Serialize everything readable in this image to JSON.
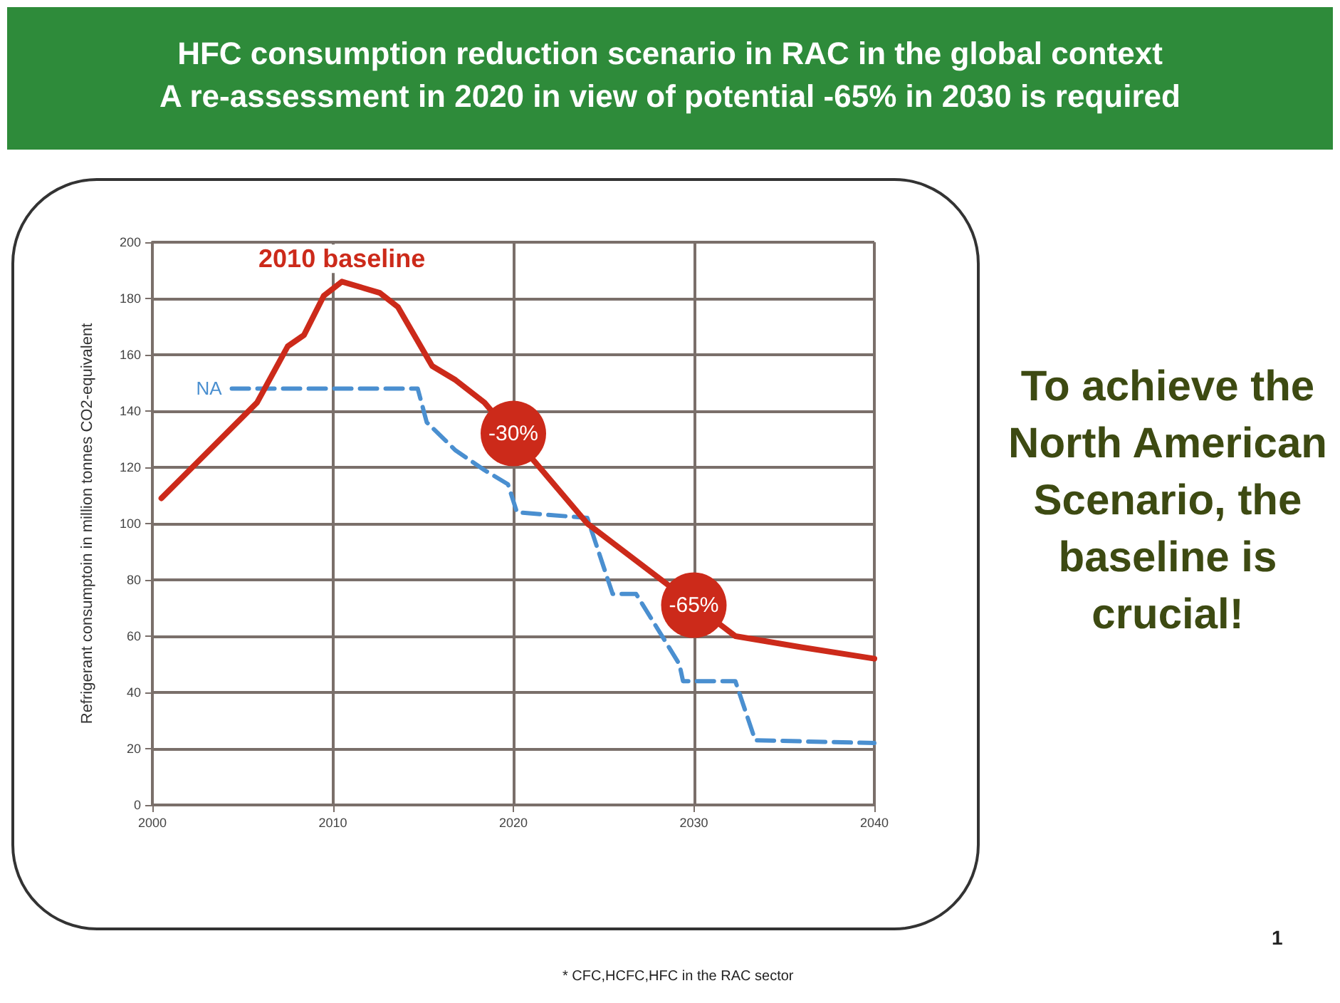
{
  "chart_data": {
    "type": "line",
    "title": "HFC consumption reduction scenario in RAC in the global context",
    "subtitle": "A re-assessment in 2020 in view of potential -65% in 2030 is required",
    "ylabel": "Refrigerant consumptoin in million tonnes CO2-equivalent",
    "xlim": [
      2000,
      2040
    ],
    "xticks": [
      2000,
      2010,
      2020,
      2030,
      2040
    ],
    "ylim": [
      0,
      200
    ],
    "yticks": [
      0,
      20,
      40,
      60,
      80,
      100,
      120,
      140,
      160,
      180,
      200
    ],
    "grid": true,
    "legend": false,
    "marker": "none",
    "series": [
      {
        "name": "2010 baseline",
        "color": "#cc2a1a",
        "line_style": "solid",
        "x": [
          2000.5,
          2005.8,
          2007.5,
          2008.4,
          2009.5,
          2010.5,
          2012.6,
          2013.6,
          2015.5,
          2016.8,
          2018.4,
          2024.1,
          2032.3,
          2036,
          2040
        ],
        "values": [
          109,
          143,
          163,
          167,
          181,
          186,
          182,
          177,
          156,
          151,
          143,
          100,
          60,
          56,
          52
        ]
      },
      {
        "name": "NA",
        "color": "#4a8fd0",
        "line_style": "dashed",
        "x": [
          2004.4,
          2014.7,
          2015.2,
          2016.8,
          2018.4,
          2019.7,
          2020.2,
          2024.1,
          2025.5,
          2026.8,
          2029.2,
          2029.4,
          2032.3,
          2033.4,
          2040
        ],
        "values": [
          148,
          148,
          136,
          126,
          119,
          114,
          104,
          102,
          75,
          75,
          50,
          44,
          44,
          23,
          22
        ]
      }
    ],
    "annotations": [
      {
        "text": "-30%",
        "x": 2020,
        "y": 132
      },
      {
        "text": "-65%",
        "x": 2030,
        "y": 71
      },
      "To achieve the North American Scenario, the baseline is crucial!",
      "* CFC,HCFC,HFC in the RAC sector",
      "1"
    ]
  }
}
